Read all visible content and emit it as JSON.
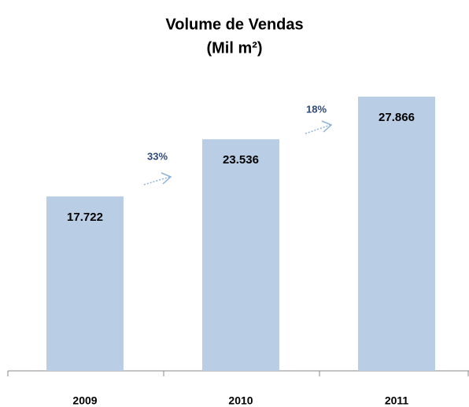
{
  "chart_data": {
    "type": "bar",
    "title": "Volume de Vendas",
    "subtitle": "(Mil m²)",
    "categories": [
      "2009",
      "2010",
      "2011"
    ],
    "values": [
      17722,
      23536,
      27866
    ],
    "value_labels": [
      "17.722",
      "23.536",
      "27.866"
    ],
    "color": "#b9cde5",
    "annotations": [
      {
        "text": "33%"
      },
      {
        "text": "18%"
      }
    ]
  }
}
